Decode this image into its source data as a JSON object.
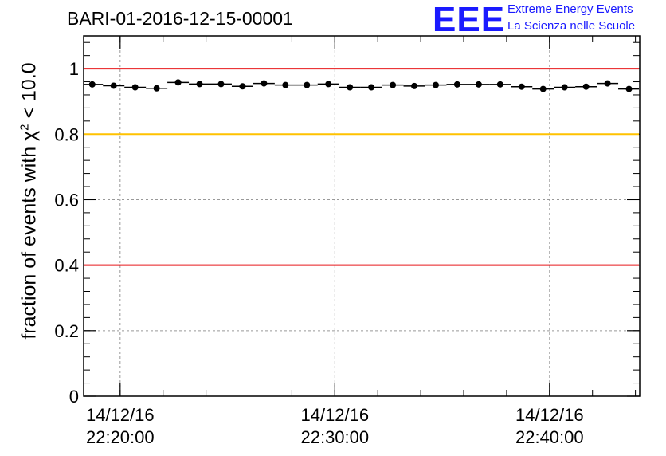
{
  "chart_data": {
    "type": "scatter",
    "title": "BARI-01-2016-12-15-00001",
    "ylabel": "fraction of events with χ",
    "ylabel_sup": "2",
    "ylabel_tail": " < 10.0",
    "xlabel": "",
    "ylim": [
      0,
      1.1
    ],
    "xlim_minutes": [
      -1.7,
      24.2
    ],
    "yticks": [
      "0",
      "0.2",
      "0.4",
      "0.6",
      "0.8",
      "1"
    ],
    "ytick_values": [
      0,
      0.2,
      0.4,
      0.6,
      0.8,
      1.0
    ],
    "xticks": [
      {
        "date": "14/12/16",
        "time": "22:20:00",
        "minute": 0
      },
      {
        "date": "14/12/16",
        "time": "22:30:00",
        "minute": 10
      },
      {
        "date": "14/12/16",
        "time": "22:40:00",
        "minute": 20
      }
    ],
    "reference_lines": [
      {
        "y": 1.0,
        "color": "#e8191c"
      },
      {
        "y": 0.8,
        "color": "#ffc200"
      },
      {
        "y": 0.4,
        "color": "#e8191c"
      }
    ],
    "bin_width_minutes": 1,
    "x_minutes": [
      -1.3,
      -0.3,
      0.7,
      1.7,
      2.7,
      3.7,
      4.7,
      5.7,
      6.7,
      7.7,
      8.7,
      9.7,
      10.7,
      11.7,
      12.7,
      13.7,
      14.7,
      15.7,
      16.7,
      17.7,
      18.7,
      19.7,
      20.7,
      21.7,
      22.7,
      23.7
    ],
    "values": [
      0.952,
      0.948,
      0.943,
      0.94,
      0.958,
      0.953,
      0.953,
      0.946,
      0.955,
      0.95,
      0.95,
      0.953,
      0.943,
      0.943,
      0.95,
      0.947,
      0.95,
      0.952,
      0.952,
      0.952,
      0.945,
      0.938,
      0.943,
      0.945,
      0.955,
      0.938
    ]
  },
  "logo": {
    "mark": "EEE",
    "line1": "Extreme Energy Events",
    "line2": "La Scienza nelle Scuole"
  },
  "colors": {
    "logo": "#1a1aff",
    "red_line": "#e8191c",
    "yellow_line": "#ffc200"
  }
}
